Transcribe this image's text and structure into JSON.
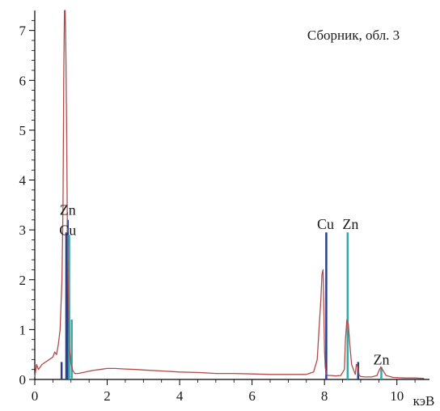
{
  "chart_data": {
    "type": "line",
    "title": "Сборник, обл. 3",
    "xlabel": "",
    "ylabel": "",
    "x_unit": "кэВ",
    "xlim": [
      0,
      10.9
    ],
    "ylim": [
      0,
      7.4
    ],
    "x_ticks": [
      0,
      2,
      4,
      6,
      8,
      10
    ],
    "y_ticks": [
      0,
      1,
      2,
      3,
      4,
      5,
      6,
      7
    ],
    "grid": false,
    "series": [
      {
        "color": "#b34a4a",
        "x": [
          0.0,
          0.05,
          0.1,
          0.15,
          0.2,
          0.3,
          0.4,
          0.5,
          0.55,
          0.6,
          0.65,
          0.7,
          0.75,
          0.78,
          0.8,
          0.82,
          0.84,
          0.86,
          0.88,
          0.9,
          0.92,
          0.94,
          0.96,
          1.0,
          1.05,
          1.1,
          1.2,
          1.4,
          1.6,
          1.8,
          2.0,
          2.2,
          2.5,
          2.8,
          3.0,
          3.5,
          4.0,
          4.5,
          5.0,
          5.5,
          6.0,
          6.5,
          7.0,
          7.5,
          7.7,
          7.8,
          7.85,
          7.9,
          7.93,
          7.96,
          7.98,
          8.0,
          8.02,
          8.05,
          8.1,
          8.2,
          8.3,
          8.45,
          8.55,
          8.58,
          8.62,
          8.66,
          8.7,
          8.75,
          8.8,
          8.85,
          8.88,
          8.92,
          8.96,
          9.0,
          9.1,
          9.3,
          9.45,
          9.52,
          9.56,
          9.6,
          9.7,
          9.9,
          10.2,
          10.5,
          10.75
        ],
        "values": [
          0.05,
          0.3,
          0.2,
          0.25,
          0.3,
          0.35,
          0.4,
          0.45,
          0.55,
          0.5,
          0.7,
          1.0,
          2.0,
          3.5,
          6.0,
          7.4,
          7.4,
          6.5,
          5.0,
          3.0,
          2.0,
          1.3,
          0.6,
          0.3,
          0.18,
          0.12,
          0.12,
          0.15,
          0.18,
          0.2,
          0.22,
          0.22,
          0.21,
          0.2,
          0.19,
          0.17,
          0.15,
          0.14,
          0.12,
          0.12,
          0.11,
          0.1,
          0.1,
          0.1,
          0.15,
          0.4,
          1.0,
          1.6,
          2.1,
          2.2,
          1.5,
          0.6,
          0.25,
          0.1,
          0.08,
          0.08,
          0.07,
          0.08,
          0.2,
          0.8,
          1.2,
          1.1,
          0.7,
          0.3,
          0.2,
          0.1,
          0.3,
          0.25,
          0.08,
          0.06,
          0.05,
          0.05,
          0.08,
          0.2,
          0.25,
          0.2,
          0.08,
          0.04,
          0.03,
          0.03,
          0.02
        ]
      }
    ],
    "peak_bars": [
      {
        "x": 0.74,
        "value": 0.35,
        "color": "#2c3f8f"
      },
      {
        "x": 0.87,
        "value": 2.95,
        "color": "#2c3f8f"
      },
      {
        "x": 0.91,
        "value": 3.2,
        "color": "#2c3f8f"
      },
      {
        "x": 0.95,
        "value": 2.9,
        "color": "#3aa7a3"
      },
      {
        "x": 1.02,
        "value": 1.2,
        "color": "#3aa7a3"
      },
      {
        "x": 8.05,
        "value": 2.95,
        "color": "#2c3f8f"
      },
      {
        "x": 8.93,
        "value": 0.35,
        "color": "#2c3f8f"
      },
      {
        "x": 8.64,
        "value": 2.95,
        "color": "#3aa7a3"
      },
      {
        "x": 9.57,
        "value": 0.25,
        "color": "#3aa7a3"
      }
    ],
    "annotations": [
      {
        "text": "Zn",
        "x": 0.91,
        "y": 3.3
      },
      {
        "text": "Cu",
        "x": 0.91,
        "y": 2.9
      },
      {
        "text": "Cu",
        "x": 8.03,
        "y": 3.02
      },
      {
        "text": "Zn",
        "x": 8.72,
        "y": 3.02
      },
      {
        "text": "Zn",
        "x": 9.57,
        "y": 0.3
      }
    ]
  }
}
